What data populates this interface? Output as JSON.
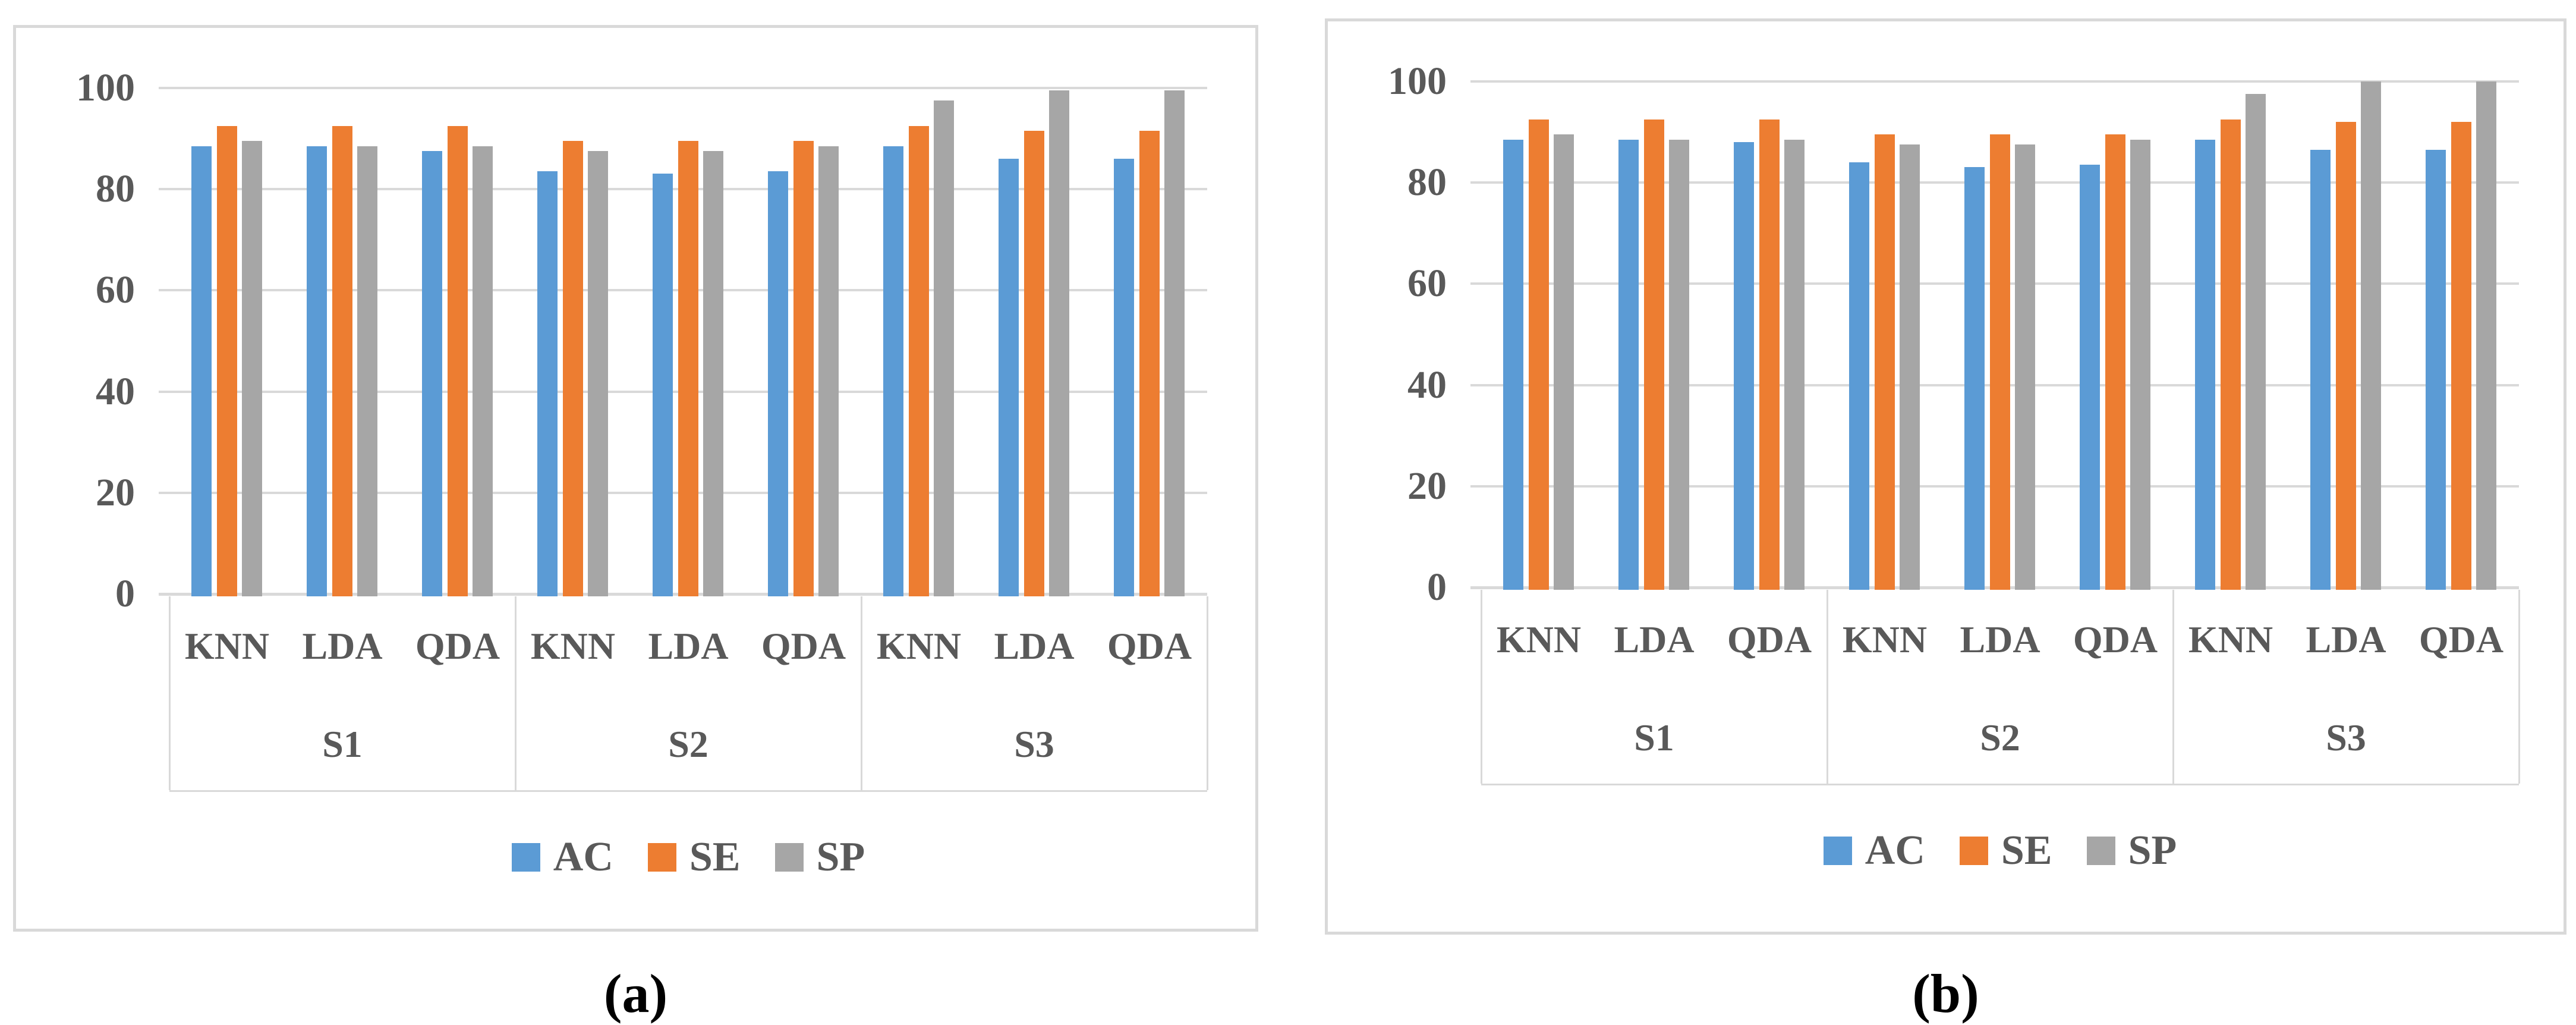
{
  "figure": {
    "background": "#ffffff",
    "panel_border_color": "#d9d9d9",
    "gridline_color": "#d9d9d9",
    "label_color": "#595959",
    "caption_color": "#000000"
  },
  "chart_data": [
    {
      "type": "bar",
      "panel": "a",
      "caption": "(a)",
      "title": "",
      "xlabel": "",
      "ylabel": "",
      "ylim": [
        0,
        100
      ],
      "y_ticks": [
        "0",
        "20",
        "40",
        "60",
        "80",
        "100"
      ],
      "grid": "horizontal",
      "legend_position": "bottom",
      "groups": [
        "S1",
        "S2",
        "S3"
      ],
      "categories": [
        "KNN",
        "LDA",
        "QDA"
      ],
      "legend": [
        "AC",
        "SE",
        "SP"
      ],
      "series": [
        {
          "name": "AC",
          "color": "#5B9BD5",
          "values": [
            89,
            89,
            88,
            84,
            83.5,
            84,
            89,
            86.5,
            86.5
          ]
        },
        {
          "name": "SE",
          "color": "#ED7D31",
          "values": [
            93,
            93,
            93,
            90,
            90,
            90,
            93,
            92,
            92
          ]
        },
        {
          "name": "SP",
          "color": "#A6A6A6",
          "values": [
            90,
            89,
            89,
            88,
            88,
            89,
            98,
            100,
            100
          ]
        }
      ]
    },
    {
      "type": "bar",
      "panel": "b",
      "caption": "(b)",
      "title": "",
      "xlabel": "",
      "ylabel": "",
      "ylim": [
        0,
        100
      ],
      "y_ticks": [
        "0",
        "20",
        "40",
        "60",
        "80",
        "100"
      ],
      "grid": "horizontal",
      "legend_position": "bottom",
      "groups": [
        "S1",
        "S2",
        "S3"
      ],
      "categories": [
        "KNN",
        "LDA",
        "QDA"
      ],
      "legend": [
        "AC",
        "SE",
        "SP"
      ],
      "series": [
        {
          "name": "AC",
          "color": "#5B9BD5",
          "values": [
            89,
            89,
            88.5,
            84.5,
            83.5,
            84,
            89,
            87,
            87
          ]
        },
        {
          "name": "SE",
          "color": "#ED7D31",
          "values": [
            93,
            93,
            93,
            90,
            90,
            90,
            93,
            92.5,
            92.5
          ]
        },
        {
          "name": "SP",
          "color": "#A6A6A6",
          "values": [
            90,
            89,
            89,
            88,
            88,
            89,
            98,
            100.5,
            100.5
          ]
        }
      ]
    }
  ]
}
